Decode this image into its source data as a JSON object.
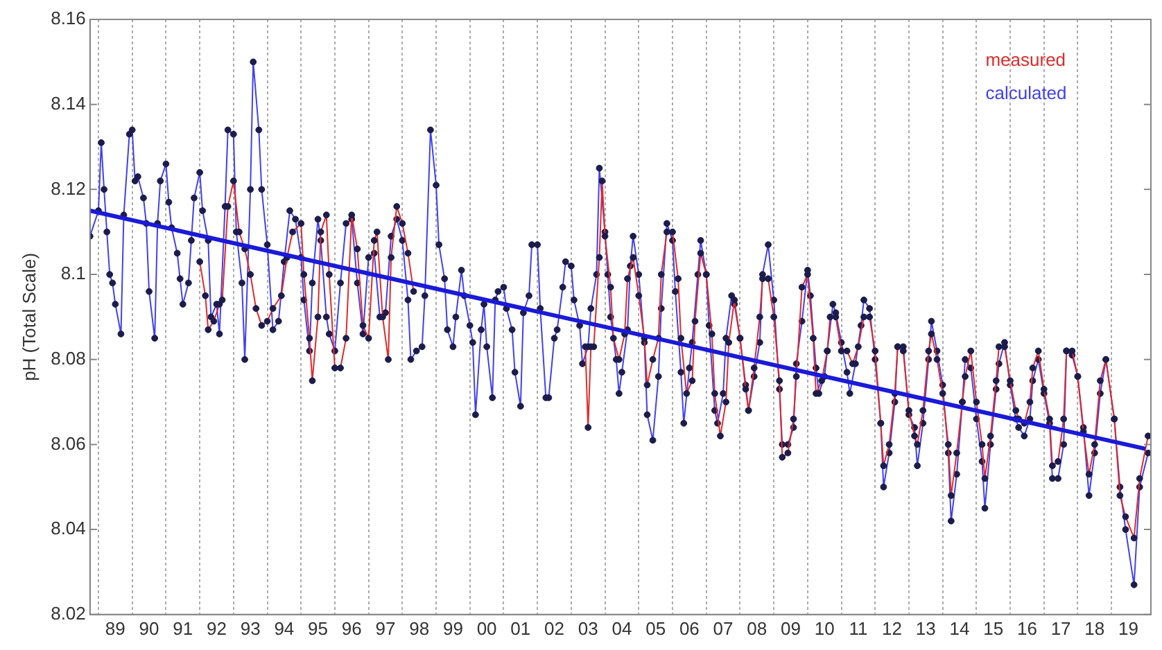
{
  "chart_data": {
    "type": "line",
    "ylabel": "pH (Total Scale)",
    "xlim": [
      "1988-10",
      "2020-03"
    ],
    "xticks": [
      {
        "value": "1989",
        "label": null
      },
      {
        "value": "1989-07",
        "label": "89"
      },
      {
        "value": "1990",
        "label": null
      },
      {
        "value": "1990-07",
        "label": "90"
      },
      {
        "value": "1991",
        "label": null
      },
      {
        "value": "1991-07",
        "label": "91"
      },
      {
        "value": "1992",
        "label": null
      },
      {
        "value": "1992-07",
        "label": "92"
      },
      {
        "value": "1993",
        "label": null
      },
      {
        "value": "1993-07",
        "label": "93"
      },
      {
        "value": "1994",
        "label": null
      },
      {
        "value": "1994-07",
        "label": "94"
      },
      {
        "value": "1995",
        "label": null
      },
      {
        "value": "1995-07",
        "label": "95"
      },
      {
        "value": "1996",
        "label": null
      },
      {
        "value": "1996-07",
        "label": "96"
      },
      {
        "value": "1997",
        "label": null
      },
      {
        "value": "1997-07",
        "label": "97"
      },
      {
        "value": "1998",
        "label": null
      },
      {
        "value": "1998-07",
        "label": "98"
      },
      {
        "value": "1999",
        "label": null
      },
      {
        "value": "1999-07",
        "label": "99"
      },
      {
        "value": "2000",
        "label": null
      },
      {
        "value": "2000-07",
        "label": "00"
      },
      {
        "value": "2001",
        "label": null
      },
      {
        "value": "2001-07",
        "label": "01"
      },
      {
        "value": "2002",
        "label": null
      },
      {
        "value": "2002-07",
        "label": "02"
      },
      {
        "value": "2003",
        "label": null
      },
      {
        "value": "2003-07",
        "label": "03"
      },
      {
        "value": "2004",
        "label": null
      },
      {
        "value": "2004-07",
        "label": "04"
      },
      {
        "value": "2005",
        "label": null
      },
      {
        "value": "2005-07",
        "label": "05"
      },
      {
        "value": "2006",
        "label": null
      },
      {
        "value": "2006-07",
        "label": "06"
      },
      {
        "value": "2007",
        "label": null
      },
      {
        "value": "2007-07",
        "label": "07"
      },
      {
        "value": "2008",
        "label": null
      },
      {
        "value": "2008-07",
        "label": "08"
      },
      {
        "value": "2009",
        "label": null
      },
      {
        "value": "2009-07",
        "label": "09"
      },
      {
        "value": "2010",
        "label": null
      },
      {
        "value": "2010-07",
        "label": "10"
      },
      {
        "value": "2011",
        "label": null
      },
      {
        "value": "2011-07",
        "label": "11"
      },
      {
        "value": "2012",
        "label": null
      },
      {
        "value": "2012-07",
        "label": "12"
      },
      {
        "value": "2013",
        "label": null
      },
      {
        "value": "2013-07",
        "label": "13"
      },
      {
        "value": "2014",
        "label": null
      },
      {
        "value": "2014-07",
        "label": "14"
      },
      {
        "value": "2015",
        "label": null
      },
      {
        "value": "2015-07",
        "label": "15"
      },
      {
        "value": "2016",
        "label": null
      },
      {
        "value": "2016-07",
        "label": "16"
      },
      {
        "value": "2017",
        "label": null
      },
      {
        "value": "2017-07",
        "label": "17"
      },
      {
        "value": "2018",
        "label": null
      },
      {
        "value": "2018-07",
        "label": "18"
      },
      {
        "value": "2019",
        "label": null
      },
      {
        "value": "2019-07",
        "label": "19"
      }
    ],
    "ylim": [
      8.02,
      8.16
    ],
    "yticks": [
      8.02,
      8.04,
      8.06,
      8.08,
      8.1,
      8.12,
      8.14,
      8.16
    ],
    "grid": "x",
    "legend": "top right",
    "marker": "circle",
    "line_style": "solid",
    "series": [
      {
        "name": "calculated",
        "color": "#4040f0",
        "x": [
          "1988-10",
          "1989-01",
          "1989-02",
          "1989-03",
          "1989-04",
          "1989-05",
          "1989-06",
          "1989-07",
          "1989-09",
          "1989-10",
          "1989-12",
          "1990-01",
          "1990-02",
          "1990-03",
          "1990-05",
          "1990-06",
          "1990-07",
          "1990-09",
          "1990-10",
          "1990-11",
          "1991-01",
          "1991-02",
          "1991-03",
          "1991-05",
          "1991-06",
          "1991-07",
          "1991-09",
          "1991-10",
          "1991-11",
          "1992-01",
          "1992-02",
          "1992-04",
          "1992-05",
          "1992-07",
          "1992-08",
          "1992-10",
          "1992-11",
          "1993-01",
          "1993-02",
          "1993-04",
          "1993-05",
          "1993-07",
          "1993-08",
          "1993-10",
          "1993-11",
          "1994-01",
          "1994-03",
          "1994-05",
          "1994-07",
          "1994-09",
          "1994-11",
          "1995-01",
          "1995-02",
          "1995-04",
          "1995-05",
          "1995-07",
          "1995-08",
          "1995-10",
          "1995-11",
          "1996-01",
          "1996-03",
          "1996-05",
          "1996-07",
          "1996-09",
          "1996-11",
          "1997-01",
          "1997-03",
          "1997-05",
          "1997-07",
          "1997-09",
          "1997-11",
          "1998-01",
          "1998-03",
          "1998-04",
          "1998-06",
          "1998-08",
          "1998-09",
          "1998-11",
          "1999-01",
          "1999-02",
          "1999-04",
          "1999-05",
          "1999-07",
          "1999-08",
          "1999-10",
          "1999-11",
          "2000-01",
          "2000-02",
          "2000-03",
          "2000-05",
          "2000-06",
          "2000-07",
          "2000-09",
          "2000-10",
          "2000-11",
          "2001-01",
          "2001-02",
          "2001-04",
          "2001-05",
          "2001-07",
          "2001-08",
          "2001-10",
          "2001-11",
          "2002-01",
          "2002-02",
          "2002-04",
          "2002-05",
          "2002-07",
          "2002-08",
          "2002-10",
          "2002-11",
          "2003-01",
          "2003-02",
          "2003-04",
          "2003-05",
          "2003-07",
          "2003-08",
          "2003-10",
          "2003-11",
          "2004-01",
          "2004-02",
          "2004-03",
          "2004-05",
          "2004-06",
          "2004-07",
          "2004-09",
          "2004-10",
          "2004-11",
          "2005-01",
          "2005-03",
          "2005-04",
          "2005-06",
          "2005-08",
          "2005-09",
          "2005-11",
          "2006-01",
          "2006-02",
          "2006-04",
          "2006-05",
          "2006-07",
          "2006-08",
          "2006-10",
          "2006-11",
          "2007-01",
          "2007-02",
          "2007-04",
          "2007-05",
          "2007-07",
          "2007-08",
          "2007-10",
          "2007-11",
          "2008-01",
          "2008-03",
          "2008-04",
          "2008-06",
          "2008-08",
          "2008-09",
          "2008-11",
          "2009-01",
          "2009-03",
          "2009-04",
          "2009-06",
          "2009-08",
          "2009-09",
          "2009-11",
          "2010-01",
          "2010-02",
          "2010-04",
          "2010-05",
          "2010-07",
          "2010-08",
          "2010-10",
          "2010-11",
          "2011-01",
          "2011-03",
          "2011-04",
          "2011-06",
          "2011-08",
          "2011-09",
          "2011-11",
          "2012-01",
          "2012-03",
          "2012-04",
          "2012-06",
          "2012-08",
          "2012-09",
          "2012-11",
          "2013-01",
          "2013-03",
          "2013-04",
          "2013-06",
          "2013-08",
          "2013-09",
          "2013-11",
          "2014-01",
          "2014-03",
          "2014-04",
          "2014-06",
          "2014-08",
          "2014-09",
          "2014-11",
          "2015-01",
          "2015-03",
          "2015-04",
          "2015-06",
          "2015-08",
          "2015-09",
          "2015-11",
          "2016-01",
          "2016-03",
          "2016-04",
          "2016-06",
          "2016-08",
          "2016-09",
          "2016-11",
          "2017-01",
          "2017-03",
          "2017-04",
          "2017-06",
          "2017-08",
          "2017-09",
          "2017-11",
          "2018-01",
          "2018-03",
          "2018-05",
          "2018-07",
          "2018-09",
          "2018-11",
          "2019-02",
          "2019-04",
          "2019-06",
          "2019-09",
          "2019-11",
          "2020-02"
        ],
        "values": [
          8.109,
          8.115,
          8.131,
          8.12,
          8.11,
          8.1,
          8.098,
          8.093,
          8.086,
          8.114,
          8.133,
          8.134,
          8.122,
          8.123,
          8.118,
          8.112,
          8.096,
          8.085,
          8.112,
          8.122,
          8.126,
          8.117,
          8.111,
          8.105,
          8.099,
          8.093,
          8.098,
          8.108,
          8.118,
          8.124,
          8.115,
          8.108,
          8.09,
          8.093,
          8.086,
          8.116,
          8.134,
          8.133,
          8.11,
          8.098,
          8.08,
          8.12,
          8.15,
          8.134,
          8.12,
          8.107,
          8.087,
          8.089,
          8.103,
          8.115,
          8.113,
          8.104,
          8.094,
          8.082,
          8.098,
          8.113,
          8.108,
          8.09,
          8.086,
          8.082,
          8.098,
          8.112,
          8.113,
          8.098,
          8.086,
          8.104,
          8.105,
          8.09,
          8.091,
          8.109,
          8.113,
          8.108,
          8.094,
          8.08,
          8.082,
          8.083,
          8.095,
          8.134,
          8.121,
          8.107,
          8.099,
          8.087,
          8.083,
          8.09,
          8.101,
          8.095,
          8.088,
          8.084,
          8.067,
          8.087,
          8.093,
          8.083,
          8.071,
          8.094,
          8.096,
          8.097,
          8.092,
          8.087,
          8.077,
          8.069,
          8.091,
          8.095,
          8.107,
          8.107,
          8.092,
          8.071,
          8.071,
          8.085,
          8.087,
          8.097,
          8.103,
          8.102,
          8.094,
          8.088,
          8.079,
          8.083,
          8.092,
          8.1,
          8.125,
          8.11,
          8.1,
          8.09,
          8.08,
          8.072,
          8.077,
          8.087,
          8.102,
          8.109,
          8.1,
          8.084,
          8.067,
          8.061,
          8.076,
          8.092,
          8.112,
          8.108,
          8.096,
          8.077,
          8.065,
          8.078,
          8.084,
          8.1,
          8.108,
          8.1,
          8.088,
          8.068,
          8.065,
          8.072,
          8.085,
          8.095,
          8.093,
          8.085,
          8.074,
          8.068,
          8.076,
          8.084,
          8.1,
          8.107,
          8.094,
          8.073,
          8.06,
          8.06,
          8.064,
          8.079,
          8.089,
          8.101,
          8.095,
          8.078,
          8.072,
          8.076,
          8.082,
          8.093,
          8.091,
          8.084,
          8.077,
          8.072,
          8.079,
          8.088,
          8.094,
          8.092,
          8.08,
          8.065,
          8.05,
          8.058,
          8.07,
          8.083,
          8.083,
          8.067,
          8.064,
          8.055,
          8.065,
          8.08,
          8.089,
          8.082,
          8.074,
          8.058,
          8.042,
          8.053,
          8.07,
          8.08,
          8.078,
          8.066,
          8.056,
          8.045,
          8.06,
          8.073,
          8.079,
          8.084,
          8.074,
          8.066,
          8.064,
          8.062,
          8.066,
          8.075,
          8.08,
          8.072,
          8.065,
          8.052,
          8.052,
          8.06,
          8.082,
          8.081,
          8.076,
          8.064,
          8.048,
          8.058,
          8.072,
          8.08,
          8.066,
          8.05,
          8.04,
          8.027,
          8.05,
          8.058
        ]
      },
      {
        "name": "measured",
        "color": "#e02a2a",
        "x": [
          "1992-01",
          "1992-03",
          "1992-04",
          "1992-06",
          "1992-08",
          "1992-09",
          "1992-11",
          "1993-01",
          "1993-03",
          "1993-05",
          "1993-07",
          "1993-09",
          "1993-11",
          "1994-01",
          "1994-03",
          "1994-06",
          "1994-08",
          "1994-10",
          "1995-01",
          "1995-02",
          "1995-04",
          "1995-05",
          "1995-07",
          "1995-08",
          "1995-10",
          "1995-11",
          "1996-01",
          "1996-03",
          "1996-05",
          "1996-07",
          "1996-09",
          "1996-11",
          "1997-01",
          "1997-03",
          "1997-04",
          "1997-06",
          "1997-08",
          "1997-09",
          "1997-11",
          "1998-01",
          "1998-03",
          "1998-05",
          "2000-06",
          "2003-06",
          "2003-07",
          "2003-08",
          "2003-09",
          "2003-11",
          "2003-12",
          "2004-01",
          "2004-03",
          "2004-04",
          "2004-06",
          "2004-08",
          "2004-09",
          "2004-11",
          "2005-01",
          "2005-03",
          "2005-04",
          "2005-06",
          "2005-08",
          "2005-09",
          "2005-11",
          "2006-01",
          "2006-03",
          "2006-04",
          "2006-06",
          "2006-08",
          "2006-09",
          "2006-11",
          "2007-01",
          "2007-03",
          "2007-04",
          "2007-06",
          "2007-08",
          "2007-09",
          "2007-11",
          "2008-01",
          "2008-03",
          "2008-04",
          "2008-06",
          "2008-08",
          "2008-09",
          "2008-11",
          "2009-01",
          "2009-03",
          "2009-04",
          "2009-06",
          "2009-08",
          "2009-09",
          "2009-11",
          "2010-01",
          "2010-03",
          "2010-04",
          "2010-06",
          "2010-08",
          "2010-09",
          "2010-11",
          "2011-01",
          "2011-03",
          "2011-05",
          "2011-07",
          "2011-09",
          "2011-11",
          "2012-01",
          "2012-03",
          "2012-04",
          "2012-06",
          "2012-08",
          "2012-09",
          "2012-11",
          "2013-01",
          "2013-03",
          "2013-04",
          "2013-06",
          "2013-08",
          "2013-09",
          "2013-11",
          "2014-01",
          "2014-03",
          "2014-04",
          "2014-06",
          "2014-08",
          "2014-09",
          "2014-11",
          "2015-01",
          "2015-03",
          "2015-04",
          "2015-06",
          "2015-08",
          "2015-09",
          "2015-11",
          "2016-01",
          "2016-03",
          "2016-04",
          "2016-06",
          "2016-08",
          "2016-09",
          "2016-11",
          "2017-01",
          "2017-03",
          "2017-04",
          "2017-06",
          "2017-08",
          "2017-09",
          "2017-11",
          "2018-01",
          "2018-03",
          "2018-05",
          "2018-07",
          "2018-09",
          "2018-11",
          "2019-02",
          "2019-04",
          "2019-06",
          "2019-09",
          "2019-11",
          "2020-02"
        ],
        "values": [
          8.103,
          8.095,
          8.087,
          8.089,
          8.093,
          8.094,
          8.116,
          8.122,
          8.11,
          8.106,
          8.1,
          8.092,
          8.088,
          8.089,
          8.092,
          8.095,
          8.104,
          8.11,
          8.112,
          8.1,
          8.085,
          8.075,
          8.09,
          8.11,
          8.114,
          8.1,
          8.078,
          8.078,
          8.085,
          8.114,
          8.106,
          8.088,
          8.085,
          8.108,
          8.11,
          8.09,
          8.08,
          8.104,
          8.116,
          8.112,
          8.105,
          8.096,
          null,
          8.083,
          8.064,
          8.083,
          8.083,
          8.104,
          8.122,
          8.109,
          8.097,
          8.085,
          8.08,
          8.086,
          8.099,
          8.104,
          8.095,
          8.085,
          8.074,
          8.08,
          8.085,
          8.1,
          8.11,
          8.11,
          8.099,
          8.085,
          8.072,
          8.075,
          8.089,
          8.105,
          8.1,
          8.086,
          8.072,
          8.062,
          8.07,
          8.084,
          8.094,
          8.085,
          8.073,
          8.068,
          8.078,
          8.09,
          8.099,
          8.099,
          8.09,
          8.075,
          8.057,
          8.058,
          8.066,
          8.076,
          8.097,
          8.1,
          8.085,
          8.072,
          8.075,
          8.082,
          8.09,
          8.09,
          8.082,
          8.082,
          8.079,
          8.083,
          8.09,
          8.09,
          8.082,
          8.065,
          8.055,
          8.06,
          8.072,
          8.083,
          8.082,
          8.068,
          8.062,
          8.06,
          8.068,
          8.082,
          8.086,
          8.08,
          8.072,
          8.06,
          8.048,
          8.058,
          8.07,
          8.076,
          8.082,
          8.07,
          8.06,
          8.052,
          8.062,
          8.075,
          8.083,
          8.083,
          8.075,
          8.068,
          8.066,
          8.065,
          8.07,
          8.078,
          8.082,
          8.073,
          8.066,
          8.055,
          8.056,
          8.066,
          8.082,
          8.082,
          8.076,
          8.063,
          8.053,
          8.06,
          8.075,
          8.08,
          8.066,
          8.048,
          8.043,
          8.038,
          8.052,
          8.062
        ]
      },
      {
        "type": "line",
        "color": "#1a1ad8",
        "marker": "none",
        "x": [
          "1988-10",
          "2020"
        ],
        "values": [
          8.115,
          8.059
        ]
      }
    ]
  }
}
